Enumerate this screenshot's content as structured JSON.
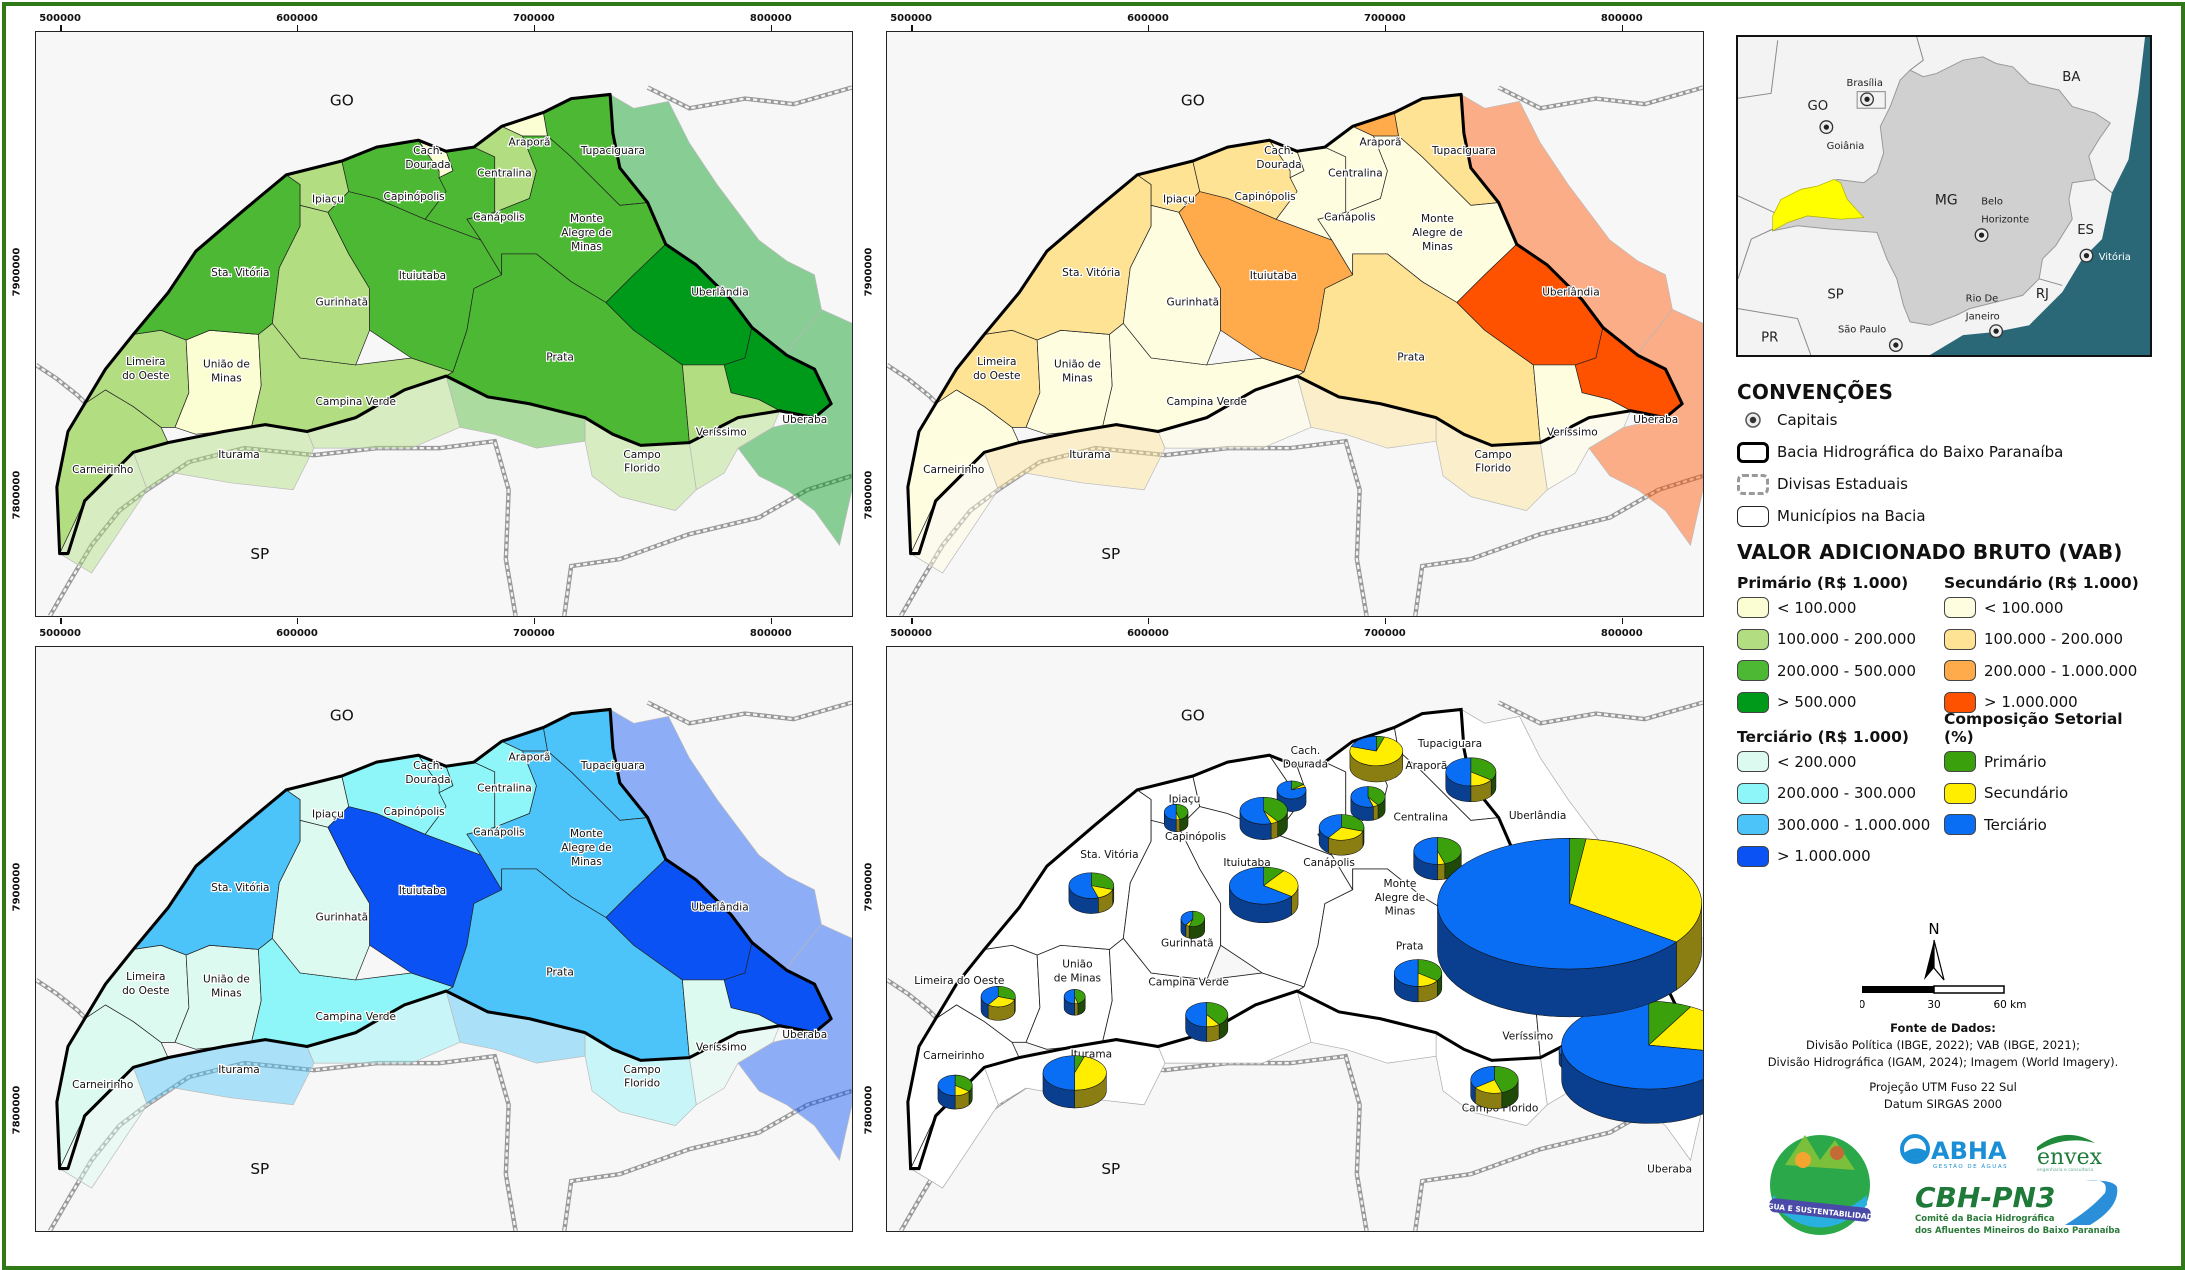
{
  "axes": {
    "x_ticks": [
      500000,
      600000,
      700000,
      800000
    ],
    "y_ticks": [
      7900000,
      7800000
    ]
  },
  "states": {
    "go": "GO",
    "sp": "SP"
  },
  "municipalities": [
    {
      "id": "carneirinho",
      "name": "Carneirinho",
      "label_lines": [
        "Carneirinho"
      ],
      "pie_label_lines": [
        "Carneirinho"
      ]
    },
    {
      "id": "limeira",
      "name": "Limeira do Oeste",
      "label_lines": [
        "Limeira",
        "do Oeste"
      ],
      "pie_label_lines": [
        "Limeira do Oeste"
      ]
    },
    {
      "id": "uniao",
      "name": "União de Minas",
      "label_lines": [
        "União de",
        "Minas"
      ],
      "pie_label_lines": [
        "União",
        "de Minas"
      ]
    },
    {
      "id": "campina",
      "name": "Campina Verde",
      "label_lines": [
        "Campina Verde"
      ],
      "pie_label_lines": [
        "Campina Verde"
      ]
    },
    {
      "id": "stavitoria",
      "name": "Sta. Vitória",
      "label_lines": [
        "Sta. Vitória"
      ],
      "pie_label_lines": [
        "Sta. Vitória"
      ]
    },
    {
      "id": "ipiacu",
      "name": "Ipiaçu",
      "label_lines": [
        "Ipiaçu"
      ],
      "pie_label_lines": [
        "Ipiaçu"
      ]
    },
    {
      "id": "gurinhata",
      "name": "Gurinhatã",
      "label_lines": [
        "Gurinhatã"
      ],
      "pie_label_lines": [
        "Gurinhatã"
      ]
    },
    {
      "id": "ituiutaba",
      "name": "Ituiutaba",
      "label_lines": [
        "Ituiutaba"
      ],
      "pie_label_lines": [
        "Ituiutaba"
      ]
    },
    {
      "id": "capinopolis",
      "name": "Capinópolis",
      "label_lines": [
        "Capinópolis"
      ],
      "pie_label_lines": [
        "Capinópolis"
      ]
    },
    {
      "id": "cachdourada",
      "name": "Cach. Dourada",
      "label_lines": [
        "Cach.",
        "Dourada"
      ],
      "pie_label_lines": [
        "Cach.",
        "Dourada"
      ]
    },
    {
      "id": "canapolis",
      "name": "Canápolis",
      "label_lines": [
        "Canápolis"
      ],
      "pie_label_lines": [
        "Canápolis"
      ]
    },
    {
      "id": "centralina",
      "name": "Centralina",
      "label_lines": [
        "Centralina"
      ],
      "pie_label_lines": [
        "Centralina"
      ]
    },
    {
      "id": "arapora",
      "name": "Araporã",
      "label_lines": [
        "Araporã"
      ],
      "pie_label_lines": [
        "Araporã"
      ]
    },
    {
      "id": "tupaciguara",
      "name": "Tupaciguara",
      "label_lines": [
        "Tupaciguara"
      ],
      "pie_label_lines": [
        "Tupaciguara"
      ]
    },
    {
      "id": "montealegre",
      "name": "Monte Alegre de Minas",
      "label_lines": [
        "Monte",
        "Alegre de",
        "Minas"
      ],
      "pie_label_lines": [
        "Monte",
        "Alegre de",
        "Minas"
      ]
    },
    {
      "id": "prata",
      "name": "Prata",
      "label_lines": [
        "Prata"
      ],
      "pie_label_lines": [
        "Prata"
      ]
    },
    {
      "id": "uberlandia",
      "name": "Uberlândia",
      "label_lines": [
        "Uberlândia"
      ],
      "pie_label_lines": [
        "Uberlândia"
      ]
    },
    {
      "id": "uberaba",
      "name": "Uberaba",
      "label_lines": [
        "Uberaba"
      ],
      "pie_label_lines": [
        "Uberaba"
      ]
    },
    {
      "id": "verissimo",
      "name": "Veríssimo",
      "label_lines": [
        "Veríssimo"
      ],
      "pie_label_lines": [
        "Veríssimo"
      ]
    },
    {
      "id": "campoflorido",
      "name": "Campo Florido",
      "label_lines": [
        "Campo",
        "Florido"
      ],
      "pie_label_lines": [
        "Campo Florido"
      ]
    },
    {
      "id": "iturama",
      "name": "Iturama",
      "label_lines": [
        "Iturama"
      ],
      "pie_label_lines": [
        "Iturama"
      ]
    }
  ],
  "maps": [
    {
      "id": "primario",
      "legend_key": "primario",
      "classes": {
        "carneirinho": 1,
        "limeira": 1,
        "uniao": 0,
        "campina": 1,
        "stavitoria": 2,
        "ipiacu": 1,
        "gurinhata": 1,
        "ituiutaba": 2,
        "capinopolis": 2,
        "cachdourada": 0,
        "canapolis": 2,
        "centralina": 1,
        "arapora": 0,
        "tupaciguara": 2,
        "montealegre": 2,
        "prata": 2,
        "uberlandia": 3,
        "uberaba": 3,
        "verissimo": 1,
        "campoflorido": 1,
        "iturama": 1
      }
    },
    {
      "id": "secundario",
      "legend_key": "secundario",
      "classes": {
        "carneirinho": 0,
        "limeira": 1,
        "uniao": 0,
        "campina": 0,
        "stavitoria": 1,
        "ipiacu": 1,
        "gurinhata": 0,
        "ituiutaba": 2,
        "capinopolis": 1,
        "cachdourada": 0,
        "canapolis": 0,
        "centralina": 0,
        "arapora": 2,
        "tupaciguara": 1,
        "montealegre": 0,
        "prata": 1,
        "uberlandia": 3,
        "uberaba": 3,
        "verissimo": 0,
        "campoflorido": 1,
        "iturama": 1
      }
    },
    {
      "id": "terciario",
      "legend_key": "terciario",
      "classes": {
        "carneirinho": 0,
        "limeira": 0,
        "uniao": 0,
        "campina": 1,
        "stavitoria": 2,
        "ipiacu": 0,
        "gurinhata": 0,
        "ituiutaba": 3,
        "capinopolis": 1,
        "cachdourada": 1,
        "canapolis": 1,
        "centralina": 1,
        "arapora": 2,
        "tupaciguara": 2,
        "montealegre": 2,
        "prata": 2,
        "uberlandia": 3,
        "uberaba": 3,
        "verissimo": 0,
        "campoflorido": 1,
        "iturama": 2
      }
    },
    {
      "id": "composicao",
      "legend_key": "composicao",
      "pies": {
        "uberlandia": {
          "primario": 2,
          "secundario": 33,
          "terciario": 65,
          "relative_size": 1.0
        },
        "uberaba": {
          "primario": 8,
          "secundario": 20,
          "terciario": 72,
          "relative_size": 0.66
        },
        "ituiutaba": {
          "primario": 10,
          "secundario": 25,
          "terciario": 65,
          "relative_size": 0.26
        },
        "iturama": {
          "primario": 5,
          "secundario": 45,
          "terciario": 50,
          "relative_size": 0.24
        },
        "arapora": {
          "primario": 5,
          "secundario": 75,
          "terciario": 20,
          "relative_size": 0.2
        },
        "prata": {
          "primario": 35,
          "secundario": 15,
          "terciario": 50,
          "relative_size": 0.18
        },
        "stavitoria": {
          "primario": 30,
          "secundario": 15,
          "terciario": 55,
          "relative_size": 0.17
        },
        "tupaciguara": {
          "primario": 35,
          "secundario": 15,
          "terciario": 50,
          "relative_size": 0.19
        },
        "montealegre": {
          "primario": 45,
          "secundario": 5,
          "terciario": 50,
          "relative_size": 0.18
        },
        "capinopolis": {
          "primario": 40,
          "secundario": 5,
          "terciario": 55,
          "relative_size": 0.18
        },
        "canapolis": {
          "primario": 30,
          "secundario": 30,
          "terciario": 40,
          "relative_size": 0.17
        },
        "campoflorido": {
          "primario": 45,
          "secundario": 20,
          "terciario": 35,
          "relative_size": 0.18
        },
        "limeira": {
          "primario": 30,
          "secundario": 30,
          "terciario": 40,
          "relative_size": 0.13
        },
        "carneirinho": {
          "primario": 35,
          "secundario": 15,
          "terciario": 50,
          "relative_size": 0.13
        },
        "campina": {
          "primario": 40,
          "secundario": 10,
          "terciario": 50,
          "relative_size": 0.16
        },
        "centralina": {
          "primario": 40,
          "secundario": 5,
          "terciario": 55,
          "relative_size": 0.13
        },
        "cachdourada": {
          "primario": 15,
          "secundario": 5,
          "terciario": 80,
          "relative_size": 0.11
        },
        "ipiacu": {
          "primario": 45,
          "secundario": 5,
          "terciario": 50,
          "relative_size": 0.09
        },
        "gurinhata": {
          "primario": 55,
          "secundario": 5,
          "terciario": 40,
          "relative_size": 0.09
        },
        "uniao": {
          "primario": 45,
          "secundario": 5,
          "terciario": 50,
          "relative_size": 0.08
        },
        "verissimo": {
          "primario": 50,
          "secundario": 5,
          "terciario": 45,
          "relative_size": 0.09
        }
      }
    }
  ],
  "inset": {
    "states": [
      "GO",
      "BA",
      "MG",
      "ES",
      "RJ",
      "SP",
      "PR"
    ],
    "capitals": [
      "Brasília",
      "Goiânia",
      "Belo Horizonte",
      "Vitória",
      "Rio De Janeiro",
      "São Paulo"
    ],
    "colors": {
      "basin": "#ffff00",
      "mg": "#d0d0d0",
      "ocean": "#2a6878"
    }
  },
  "legend": {
    "conventions_title": "CONVENÇÕES",
    "conventions": {
      "capitais": "Capitais",
      "bacia": "Bacia Hidrográfica do Baixo Paranaíba",
      "divisas": "Divisas Estaduais",
      "municipios": "Municípios na Bacia"
    },
    "vab_title": "VALOR ADICIONADO BRUTO (VAB)",
    "primario": {
      "title": "Primário (R$ 1.000)",
      "items": [
        {
          "label": "< 100.000",
          "color": "#fbfdd3"
        },
        {
          "label": "100.000 - 200.000",
          "color": "#b2dd80"
        },
        {
          "label": "200.000 - 500.000",
          "color": "#4db833"
        },
        {
          "label": "> 500.000",
          "color": "#009a1b"
        }
      ]
    },
    "secundario": {
      "title": "Secundário (R$ 1.000)",
      "items": [
        {
          "label": "< 100.000",
          "color": "#fffde0"
        },
        {
          "label": "100.000 - 200.000",
          "color": "#ffe394"
        },
        {
          "label": "200.000 - 1.000.000",
          "color": "#ffab4b"
        },
        {
          "label": "> 1.000.000",
          "color": "#ff5200"
        }
      ]
    },
    "terciario": {
      "title": "Terciário (R$ 1.000)",
      "items": [
        {
          "label": "< 200.000",
          "color": "#dcfaf0"
        },
        {
          "label": "200.000 - 300.000",
          "color": "#8ef5f8"
        },
        {
          "label": "300.000 - 1.000.000",
          "color": "#4cc3f9"
        },
        {
          "label": "> 1.000.000",
          "color": "#0b52f5"
        }
      ]
    },
    "composicao": {
      "title": "Composição Setorial (%)",
      "items": [
        {
          "label": "Primário",
          "color": "#3aa10d",
          "side": "#1f4a08"
        },
        {
          "label": "Secundário",
          "color": "#ffee00",
          "side": "#8a7d12"
        },
        {
          "label": "Terciário",
          "color": "#0a6ef5",
          "side": "#0a3f90"
        }
      ]
    }
  },
  "scale_bar": {
    "north": "N",
    "labels": [
      "0",
      "30",
      "60 km"
    ]
  },
  "notes": {
    "source_title": "Fonte de Dados:",
    "source_lines": [
      "Divisão Política (IBGE, 2022); VAB (IBGE, 2021);",
      "Divisão Hidrográfica (IGAM, 2024); Imagem (World Imagery)."
    ],
    "projection": "Projeção UTM Fuso 22 Sul",
    "datum": "Datum SIRGAS 2000"
  },
  "logos": {
    "campaign": "ÁGUA E SUSTENTABILIDADE",
    "abha": "ABHA",
    "abha_sub": "GESTÃO DE ÁGUAS",
    "envex": "envex",
    "envex_sub": "engenharia e consultoria",
    "cbh": "CBH-PN3",
    "cbh_line1": "Comitê da Bacia Hidrográfica",
    "cbh_line2": "dos Afluentes Mineiros do Baixo Paranaíba"
  },
  "frame_color": "#2f7a16"
}
